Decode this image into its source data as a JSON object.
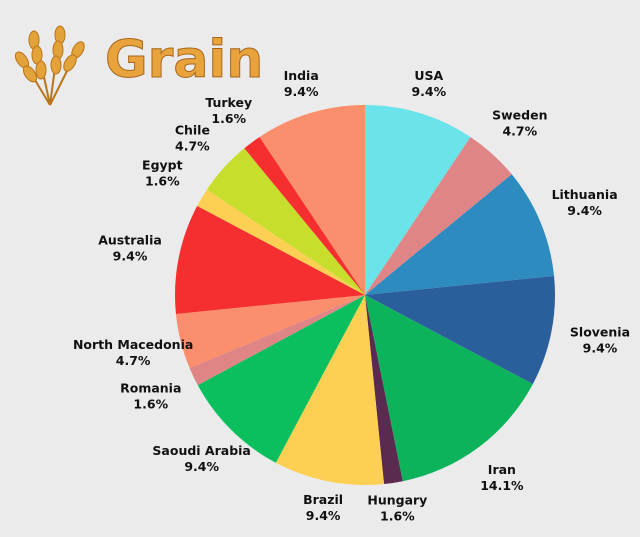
{
  "chart_data": {
    "type": "pie",
    "title": "Grain",
    "categories": [
      "USA",
      "Sweden",
      "Lithuania",
      "Slovenia",
      "Iran",
      "Hungary",
      "Brazil",
      "Saoudi Arabia",
      "Romania",
      "North Macedonia",
      "Australia",
      "Egypt",
      "Chile",
      "Turkey",
      "India"
    ],
    "values": [
      9.4,
      4.7,
      9.4,
      9.4,
      14.1,
      1.6,
      9.4,
      9.4,
      1.6,
      4.7,
      9.4,
      1.6,
      4.7,
      1.6,
      9.4
    ],
    "value_labels": [
      "9.4%",
      "4.7%",
      "9.4%",
      "9.4%",
      "14.1%",
      "1.6%",
      "9.4%",
      "9.4%",
      "1.6%",
      "4.7%",
      "9.4%",
      "1.6%",
      "4.7%",
      "1.6%",
      "9.4%"
    ],
    "colors": [
      "#6ae3ea",
      "#e08585",
      "#2e8bbf",
      "#2b5f9b",
      "#0db35a",
      "#5b2a4f",
      "#fdd054",
      "#0cbf5e",
      "#e08585",
      "#fb8e6c",
      "#f52f2f",
      "#fdd054",
      "#c7df2c",
      "#f52f2f",
      "#fb8e6c"
    ]
  }
}
